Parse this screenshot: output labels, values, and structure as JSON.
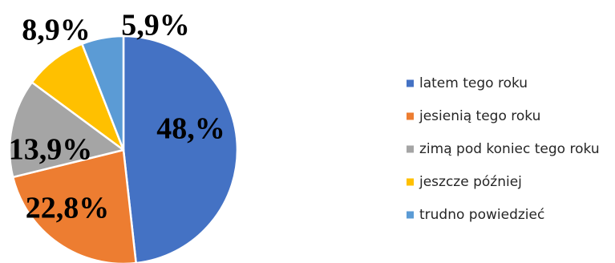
{
  "chart_data": {
    "type": "pie",
    "labels": [
      "latem tego roku",
      "jesienią tego roku",
      "zimą pod koniec tego roku",
      "jeszcze później",
      "trudno powiedzieć"
    ],
    "values": [
      48.0,
      22.8,
      13.9,
      8.9,
      5.9
    ],
    "data_labels": [
      "48,%",
      "22,8%",
      "13,9%",
      "8,9%",
      "5,9%"
    ],
    "colors": [
      "#4472C4",
      "#ED7D31",
      "#A5A5A5",
      "#FFC000",
      "#5B9BD5"
    ],
    "legend_position": "right",
    "start_angle_deg": 0,
    "direction": "clockwise"
  }
}
